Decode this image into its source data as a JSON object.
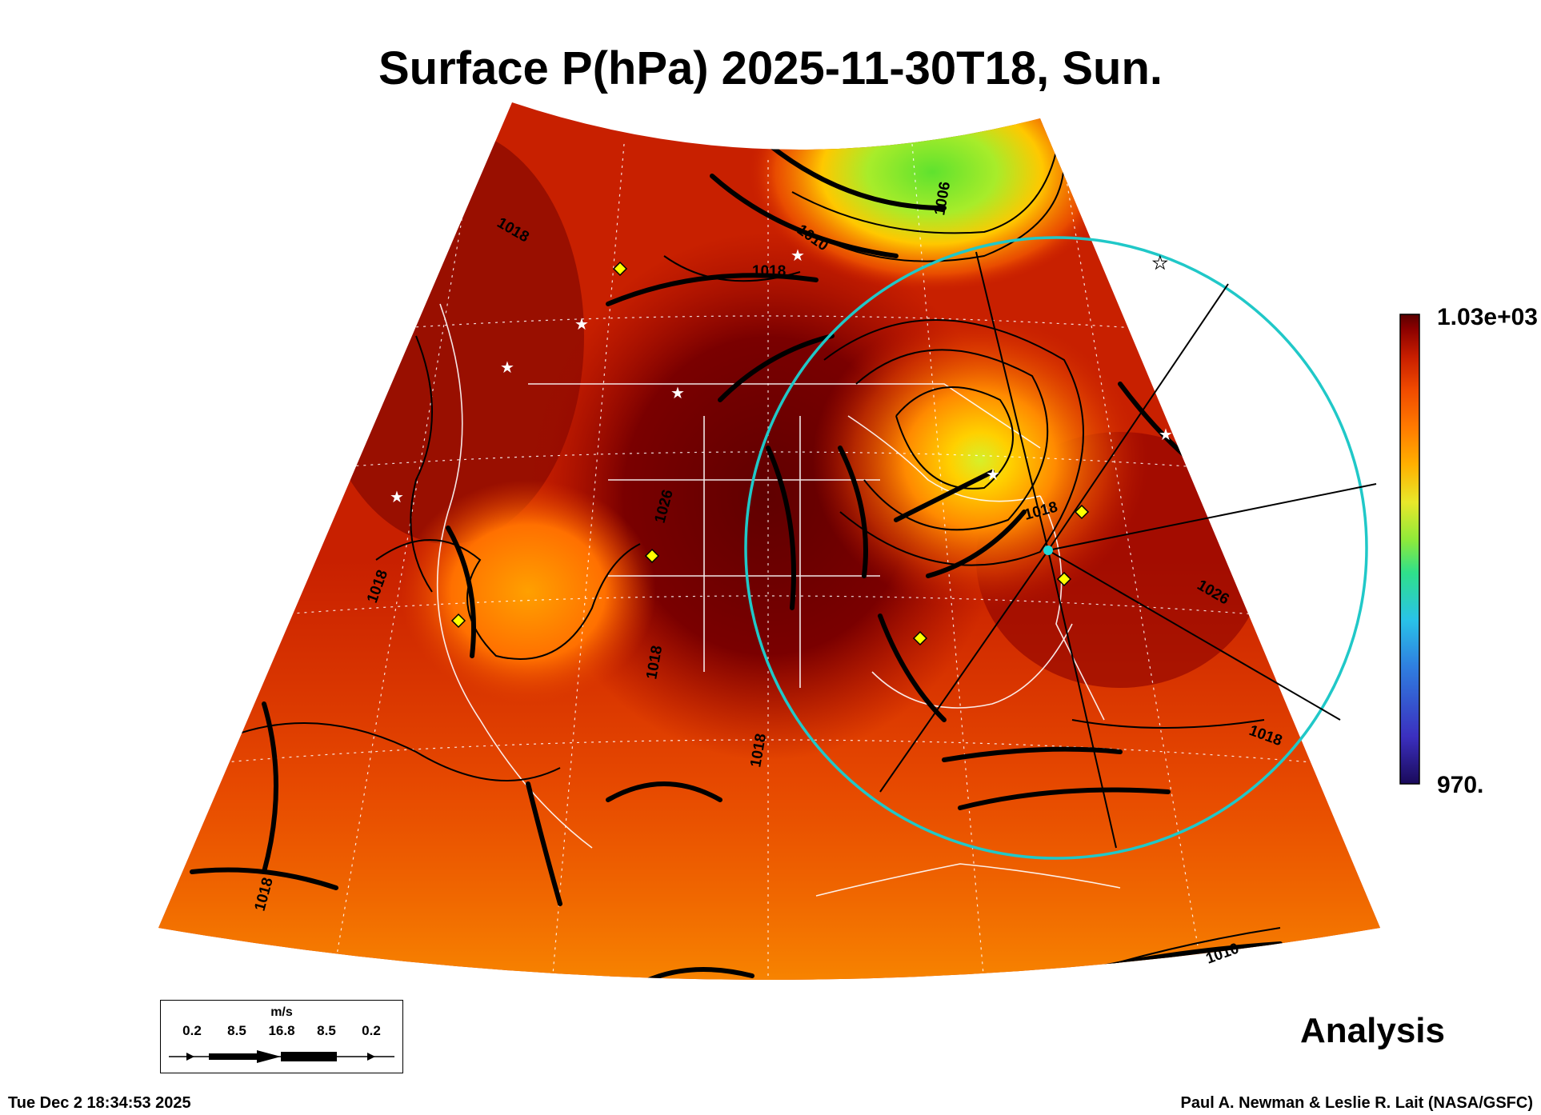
{
  "title": "Surface P(hPa) 2025-11-30T18, Sun.",
  "colorbar": {
    "max_label": "1.03e+03",
    "min_label": "970.",
    "colors": [
      "#1a0a5a",
      "#3b2fbf",
      "#2f7fe0",
      "#29c3e8",
      "#2fe08a",
      "#8fea3a",
      "#e8e82a",
      "#ffb000",
      "#ff7a00",
      "#f04a00",
      "#c81e00",
      "#8a0000",
      "#5a0000"
    ]
  },
  "contour_labels": [
    "1018",
    "1018",
    "1010",
    "1018",
    "1006",
    "1018",
    "1026",
    "1018",
    "1018",
    "1026",
    "1018",
    "1018",
    "1010"
  ],
  "wind_legend": {
    "unit": "m/s",
    "ticks": [
      "0.2",
      "8.5",
      "16.8",
      "8.5",
      "0.2"
    ]
  },
  "panel_label": "Analysis",
  "timestamp": "Tue Dec  2 18:34:53 2025",
  "credit": "Paul A. Newman & Leslie R. Lait (NASA/GSFC)"
}
